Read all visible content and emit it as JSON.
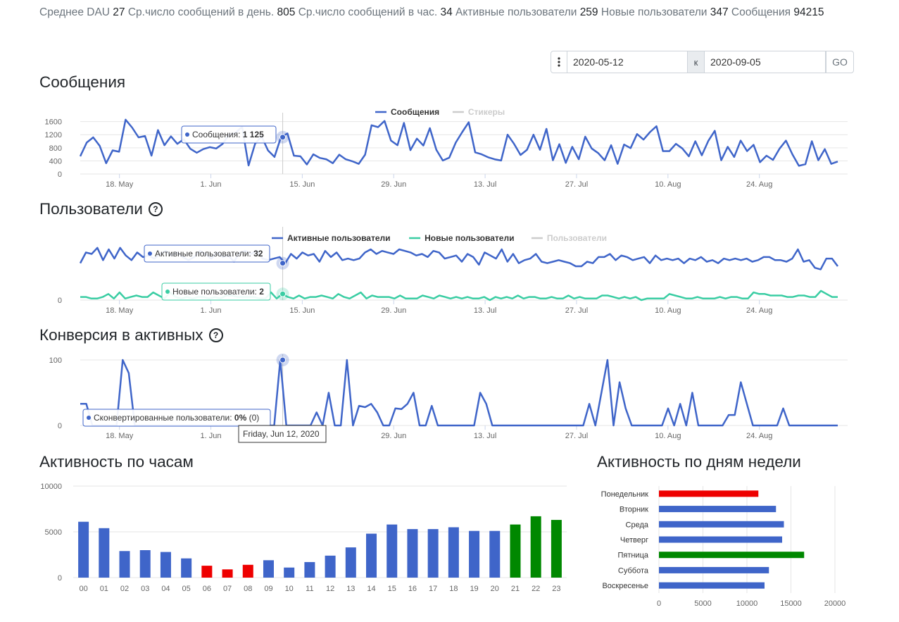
{
  "stats": {
    "dau_label": "Среднее DAU",
    "dau_value": "27",
    "msg_day_label": "Ср.число сообщений в день.",
    "msg_day_value": "805",
    "msg_hour_label": "Ср.число сообщений в час.",
    "msg_hour_value": "34",
    "active_label": "Активные пользователи",
    "active_value": "259",
    "new_label": "Новые пользователи",
    "new_value": "347",
    "messages_label": "Сообщения",
    "messages_value": "94215"
  },
  "daterange": {
    "from": "2020-05-12",
    "separator": "к",
    "to": "2020-09-05",
    "go_label": "GO"
  },
  "colors": {
    "blue": "#3f65c9",
    "teal": "#3acda3",
    "red": "#ee0000",
    "green": "#008800",
    "grid": "#e6e6e6",
    "muted": "#cccccc"
  },
  "sections": {
    "messages_title": "Сообщения",
    "users_title": "Пользователи",
    "conversion_title": "Конверсия в активных",
    "hours_title": "Активность по часам",
    "weekdays_title": "Активность по дням недели"
  },
  "chart_data": [
    {
      "type": "line",
      "x_start": "2020-05-12",
      "x_end": "2020-09-05",
      "x_ticks": [
        "18. May",
        "1. Jun",
        "15. Jun",
        "29. Jun",
        "13. Jul",
        "27. Jul",
        "10. Aug",
        "24. Aug"
      ],
      "y_ticks": [
        "0",
        "400",
        "800",
        "1200",
        "1600"
      ],
      "ylim": [
        0,
        1700
      ],
      "legend_position": "top",
      "series": [
        {
          "name": "Сообщения",
          "values": [
            540,
            960,
            1120,
            860,
            330,
            720,
            680,
            1660,
            1420,
            1120,
            1160,
            560,
            1340,
            880,
            1150,
            920,
            1060,
            770,
            650,
            760,
            820,
            780,
            920,
            1200,
            1260,
            1440,
            260,
            920,
            1150,
            720,
            520,
            1125,
            1240,
            560,
            540,
            290,
            600,
            490,
            450,
            330,
            590,
            450,
            390,
            310,
            590,
            1490,
            1430,
            1620,
            1020,
            880,
            1560,
            730,
            1080,
            870,
            1400,
            740,
            410,
            500,
            960,
            1280,
            1580,
            660,
            600,
            510,
            450,
            410,
            1200,
            920,
            580,
            740,
            1200,
            740,
            1380,
            420,
            910,
            340,
            830,
            450,
            1140,
            780,
            640,
            420,
            880,
            310,
            900,
            790,
            1220,
            1050,
            1280,
            1460,
            700,
            700,
            920,
            780,
            540,
            1000,
            570,
            1010,
            1320,
            420,
            830,
            520,
            1020,
            700,
            890,
            360,
            560,
            430,
            770,
            1020,
            600,
            250,
            300,
            1000,
            420,
            760,
            310,
            380
          ]
        },
        {
          "name": "Стикеры",
          "hidden": true,
          "values": []
        }
      ],
      "tooltip": {
        "label": "Сообщения:",
        "value": "1 125"
      }
    },
    {
      "type": "line",
      "x_start": "2020-05-12",
      "x_end": "2020-09-05",
      "x_ticks": [
        "18. May",
        "1. Jun",
        "15. Jun",
        "29. Jun",
        "13. Jul",
        "27. Jul",
        "10. Aug",
        "24. Aug"
      ],
      "y_ticks": [
        "0"
      ],
      "ylim": [
        0,
        44
      ],
      "legend_position": "top",
      "series": [
        {
          "name": "Активные пользователи",
          "values": [
            24,
            31,
            30,
            34,
            26,
            33,
            27,
            34,
            29,
            26,
            31,
            28,
            29,
            27,
            30,
            32,
            29,
            31,
            28,
            26,
            28,
            32,
            30,
            27,
            31,
            28,
            29,
            25,
            31,
            32,
            30,
            32,
            27,
            26,
            27,
            28,
            24,
            30,
            27,
            31,
            29,
            30,
            25,
            32,
            28,
            31,
            26,
            27,
            26,
            27,
            31,
            33,
            30,
            32,
            31,
            30,
            33,
            32,
            31,
            29,
            30,
            28,
            32,
            31,
            27,
            28,
            29,
            25,
            30,
            28,
            23,
            31,
            29,
            27,
            33,
            25,
            30,
            24,
            26,
            27,
            30,
            25,
            24,
            25,
            26,
            25,
            24,
            22,
            22,
            25,
            24,
            28,
            28,
            30,
            26,
            29,
            28,
            26,
            27,
            28,
            24,
            29,
            26,
            27,
            26,
            27,
            24,
            27,
            26,
            28,
            25,
            26,
            24,
            27,
            26,
            27,
            26,
            27,
            25,
            26,
            28,
            28,
            26,
            26,
            25,
            27,
            33,
            25,
            26,
            21,
            20,
            27,
            27,
            22
          ]
        },
        {
          "name": "Новые пользователи",
          "values": [
            2,
            2,
            1,
            1,
            2,
            4,
            1,
            5,
            1,
            2,
            3,
            2,
            2,
            5,
            3,
            1,
            5,
            2,
            1,
            2,
            1,
            2,
            2,
            1,
            2,
            1,
            3,
            3,
            2,
            2,
            2,
            2,
            1,
            1,
            5,
            1,
            4,
            2,
            1,
            3,
            1,
            2,
            2,
            3,
            2,
            1,
            4,
            2,
            1,
            3,
            5,
            1,
            3,
            2,
            2,
            2,
            1,
            3,
            1,
            1,
            1,
            3,
            2,
            1,
            3,
            2,
            1,
            2,
            1,
            2,
            1,
            1,
            2,
            0,
            2,
            1,
            2,
            1,
            3,
            1,
            2,
            2,
            1,
            1,
            2,
            1,
            1,
            3,
            1,
            2,
            1,
            1,
            1,
            3,
            3,
            2,
            1,
            2,
            1,
            2,
            0,
            1,
            1,
            1,
            1,
            4,
            3,
            2,
            1,
            1,
            2,
            1,
            1,
            1,
            2,
            1,
            2,
            2,
            1,
            1,
            5,
            4,
            4,
            3,
            3,
            3,
            2,
            2,
            3,
            3,
            2,
            2,
            6,
            4,
            2,
            2
          ]
        },
        {
          "name": "Пользователи",
          "hidden": true,
          "values": []
        }
      ],
      "tooltips": [
        {
          "label": "Активные пользователи:",
          "value": "32"
        },
        {
          "label": "Новые пользователи:",
          "value": "2"
        }
      ]
    },
    {
      "type": "line",
      "x_start": "2020-05-12",
      "x_end": "2020-09-05",
      "x_ticks": [
        "18. May",
        "1. Jun",
        "15. Jun",
        "29. Jun",
        "13. Jul",
        "27. Jul",
        "10. Aug",
        "24. Aug"
      ],
      "y_ticks": [
        "0",
        "100"
      ],
      "ylim": [
        0,
        100
      ],
      "series": [
        {
          "name": "Сконвертированные пользователи",
          "values": [
            33,
            33,
            0,
            0,
            0,
            0,
            0,
            100,
            80,
            0,
            0,
            0,
            0,
            0,
            0,
            0,
            0,
            0,
            0,
            0,
            0,
            0,
            0,
            0,
            0,
            0,
            0,
            0,
            0,
            0,
            0,
            0,
            0,
            100,
            0,
            0,
            0,
            0,
            0,
            20,
            0,
            50,
            0,
            0,
            100,
            0,
            30,
            28,
            33,
            20,
            0,
            0,
            26,
            25,
            33,
            50,
            0,
            0,
            30,
            0,
            0,
            0,
            0,
            0,
            0,
            0,
            50,
            33,
            0,
            0,
            0,
            0,
            0,
            0,
            0,
            0,
            0,
            0,
            0,
            0,
            0,
            0,
            0,
            0,
            33,
            0,
            50,
            100,
            0,
            66,
            26,
            0,
            0,
            0,
            0,
            0,
            0,
            26,
            0,
            33,
            0,
            50,
            0,
            0,
            0,
            0,
            0,
            16,
            16,
            66,
            33,
            0,
            0,
            0,
            0,
            0,
            26,
            0,
            0,
            0,
            0,
            0,
            0,
            0,
            0,
            0
          ]
        }
      ],
      "tooltip": {
        "label": "Сконвертированные пользователи:",
        "value": "0%",
        "extra": "(0)",
        "date": "Friday, Jun 12, 2020"
      }
    },
    {
      "type": "bar",
      "categories": [
        "00",
        "01",
        "02",
        "03",
        "04",
        "05",
        "06",
        "07",
        "08",
        "09",
        "10",
        "11",
        "12",
        "13",
        "14",
        "15",
        "16",
        "17",
        "18",
        "19",
        "20",
        "21",
        "22",
        "23"
      ],
      "values": [
        6100,
        5400,
        2900,
        3000,
        2800,
        2100,
        1300,
        900,
        1400,
        1900,
        1100,
        1700,
        2400,
        3300,
        4800,
        5800,
        5300,
        5300,
        5500,
        5100,
        5100,
        5800,
        6700,
        6300
      ],
      "colors": [
        "blue",
        "blue",
        "blue",
        "blue",
        "blue",
        "blue",
        "red",
        "red",
        "red",
        "blue",
        "blue",
        "blue",
        "blue",
        "blue",
        "blue",
        "blue",
        "blue",
        "blue",
        "blue",
        "blue",
        "blue",
        "green",
        "green",
        "green"
      ],
      "y_ticks": [
        "0",
        "5000",
        "10000"
      ],
      "ylim": [
        0,
        10000
      ]
    },
    {
      "type": "bar",
      "orientation": "horizontal",
      "categories": [
        "Понедельник",
        "Вторник",
        "Среда",
        "Четверг",
        "Пятница",
        "Суббота",
        "Воскресенье"
      ],
      "values": [
        11300,
        13300,
        14200,
        14000,
        16500,
        12500,
        12000
      ],
      "colors": [
        "red",
        "blue",
        "blue",
        "blue",
        "green",
        "blue",
        "blue"
      ],
      "x_ticks": [
        "0",
        "5000",
        "10000",
        "15000",
        "20000"
      ],
      "xlim": [
        0,
        20000
      ]
    }
  ]
}
